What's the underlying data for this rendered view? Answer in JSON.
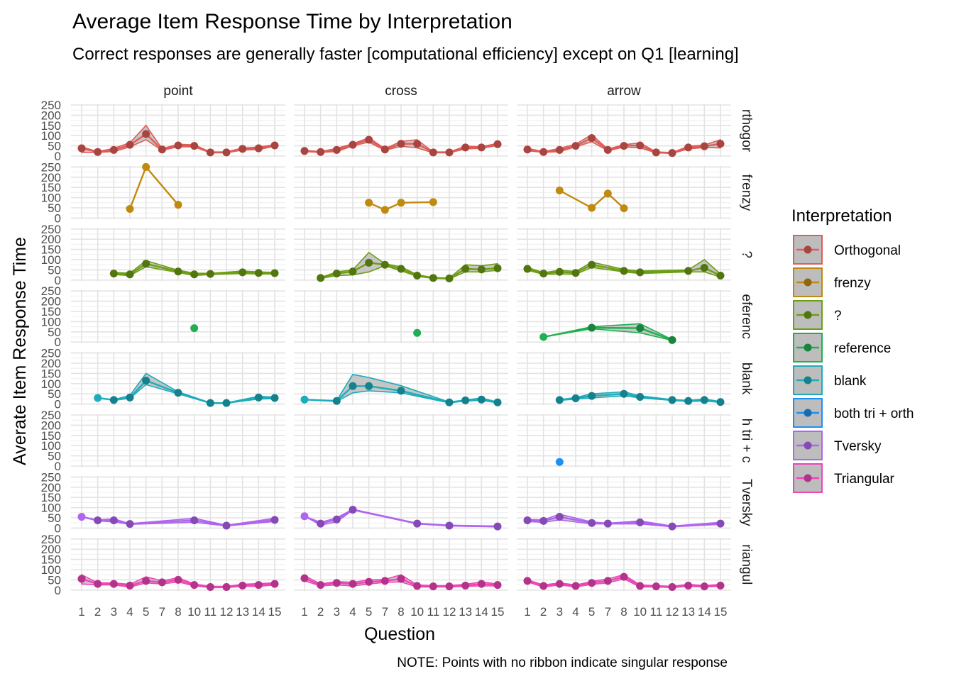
{
  "chart_data": {
    "type": "line",
    "title": "Average Item Response Time by Interpretation",
    "subtitle": "Correct responses are generally faster [computational efficiency] except on Q1 [learning]",
    "caption": "NOTE: Points with no ribbon indicate singular response",
    "xlabel": "Question",
    "ylabel": "Averate Item Response Time",
    "ylim": [
      0,
      250
    ],
    "yticks": [
      0,
      50,
      100,
      150,
      200,
      250
    ],
    "x_categories": [
      "1",
      "2",
      "3",
      "4",
      "5",
      "7",
      "8",
      "10",
      "11",
      "12",
      "13",
      "14",
      "15"
    ],
    "columns": [
      "point",
      "cross",
      "arrow"
    ],
    "rows": [
      {
        "strip": "rthogor",
        "colour": "#E05C57"
      },
      {
        "strip": "frenzy",
        "colour": "#C08A10"
      },
      {
        "strip": "?",
        "colour": "#6E9E14"
      },
      {
        "strip": "eferenc",
        "colour": "#20B050"
      },
      {
        "strip": "blank",
        "colour": "#1DACBB"
      },
      {
        "strip": "h tri + c",
        "colour": "#1E90F0"
      },
      {
        "strip": "Tversky",
        "colour": "#B064F0"
      },
      {
        "strip": "riangul",
        "colour": "#F045B8"
      }
    ],
    "legend": {
      "title": "Interpretation",
      "items": [
        {
          "label": "Orthogonal",
          "colour": "#E05C57"
        },
        {
          "label": "frenzy",
          "colour": "#C08A10"
        },
        {
          "label": "?",
          "colour": "#6E9E14"
        },
        {
          "label": "reference",
          "colour": "#20B050"
        },
        {
          "label": "blank",
          "colour": "#1DACBB"
        },
        {
          "label": "both tri + orth",
          "colour": "#1E90F0"
        },
        {
          "label": "Tversky",
          "colour": "#B064F0"
        },
        {
          "label": "Triangular",
          "colour": "#F045B8"
        }
      ]
    },
    "panels": [
      [
        [
          [
            "1",
            38,
            18,
            45
          ],
          [
            "2",
            20,
            18,
            22
          ],
          [
            "3",
            30,
            22,
            38
          ],
          [
            "4",
            55,
            45,
            65
          ],
          [
            "5",
            108,
            80,
            150
          ],
          [
            "7",
            32,
            28,
            36
          ],
          [
            "8",
            52,
            45,
            58
          ],
          [
            "10",
            50,
            45,
            55
          ],
          [
            "11",
            18,
            16,
            20
          ],
          [
            "12",
            18,
            16,
            20
          ],
          [
            "13",
            35,
            30,
            40
          ],
          [
            "14",
            38,
            32,
            44
          ],
          [
            "15",
            52,
            48,
            56
          ]
        ],
        [
          [
            "1",
            25,
            22,
            28
          ],
          [
            "2",
            20,
            18,
            22
          ],
          [
            "3",
            30,
            22,
            38
          ],
          [
            "4",
            55,
            50,
            60
          ],
          [
            "5",
            80,
            68,
            90
          ],
          [
            "7",
            32,
            28,
            36
          ],
          [
            "8",
            60,
            48,
            72
          ],
          [
            "10",
            60,
            40,
            80
          ],
          [
            "11",
            18,
            16,
            20
          ],
          [
            "12",
            18,
            16,
            20
          ],
          [
            "13",
            42,
            35,
            48
          ],
          [
            "14",
            42,
            38,
            46
          ],
          [
            "15",
            58,
            52,
            62
          ]
        ],
        [
          [
            "1",
            32,
            26,
            38
          ],
          [
            "2",
            20,
            18,
            22
          ],
          [
            "3",
            30,
            22,
            38
          ],
          [
            "4",
            50,
            45,
            58
          ],
          [
            "5",
            88,
            70,
            105
          ],
          [
            "7",
            30,
            26,
            34
          ],
          [
            "8",
            50,
            44,
            56
          ],
          [
            "10",
            52,
            40,
            65
          ],
          [
            "11",
            18,
            16,
            20
          ],
          [
            "12",
            15,
            13,
            17
          ],
          [
            "13",
            42,
            35,
            48
          ],
          [
            "14",
            48,
            42,
            54
          ],
          [
            "15",
            60,
            40,
            80
          ]
        ]
      ],
      [
        [
          [
            "4",
            45,
            45,
            45
          ],
          [
            "5",
            250,
            250,
            250
          ],
          [
            "8",
            65,
            65,
            65
          ]
        ],
        [
          [
            "5",
            75,
            75,
            75
          ],
          [
            "7",
            40,
            40,
            40
          ],
          [
            "8",
            75,
            75,
            75
          ],
          [
            "11",
            78,
            78,
            78
          ]
        ],
        [
          [
            "3",
            135,
            135,
            135
          ],
          [
            "5",
            50,
            50,
            50
          ],
          [
            "7",
            120,
            120,
            120
          ],
          [
            "8",
            48,
            48,
            48
          ]
        ]
      ],
      [
        [
          [
            "3",
            32,
            27,
            37
          ],
          [
            "4",
            28,
            22,
            34
          ],
          [
            "5",
            80,
            65,
            95
          ],
          [
            "8",
            42,
            37,
            48
          ],
          [
            "10",
            28,
            22,
            34
          ],
          [
            "11",
            30,
            27,
            33
          ],
          [
            "13",
            38,
            32,
            44
          ],
          [
            "14",
            35,
            30,
            40
          ],
          [
            "15",
            34,
            30,
            38
          ]
        ],
        [
          [
            "2",
            10,
            8,
            12
          ],
          [
            "3",
            32,
            22,
            40
          ],
          [
            "4",
            42,
            25,
            50
          ],
          [
            "5",
            85,
            40,
            135
          ],
          [
            "7",
            75,
            70,
            80
          ],
          [
            "8",
            55,
            45,
            65
          ],
          [
            "10",
            22,
            18,
            26
          ],
          [
            "11",
            10,
            8,
            12
          ],
          [
            "12",
            8,
            6,
            10
          ],
          [
            "13",
            55,
            40,
            75
          ],
          [
            "14",
            52,
            40,
            70
          ],
          [
            "15",
            58,
            48,
            80
          ]
        ],
        [
          [
            "1",
            55,
            48,
            62
          ],
          [
            "2",
            32,
            28,
            36
          ],
          [
            "3",
            40,
            30,
            48
          ],
          [
            "4",
            35,
            28,
            42
          ],
          [
            "5",
            75,
            62,
            88
          ],
          [
            "8",
            45,
            40,
            52
          ],
          [
            "10",
            38,
            32,
            44
          ],
          [
            "13",
            45,
            40,
            50
          ],
          [
            "14",
            60,
            40,
            100
          ],
          [
            "15",
            22,
            15,
            30
          ]
        ]
      ],
      [
        [
          [
            "10",
            68,
            68,
            68
          ]
        ],
        [
          [
            "10",
            45,
            45,
            45
          ]
        ],
        [
          [
            "2",
            25,
            25,
            25
          ],
          [
            "5",
            70,
            65,
            75
          ],
          [
            "10",
            68,
            45,
            90
          ],
          [
            "12",
            10,
            8,
            12
          ]
        ]
      ],
      [
        [
          [
            "2",
            30,
            30,
            30
          ],
          [
            "3",
            20,
            18,
            22
          ],
          [
            "4",
            32,
            28,
            42
          ],
          [
            "5",
            115,
            95,
            150
          ],
          [
            "8",
            55,
            50,
            60
          ],
          [
            "11",
            5,
            4,
            6
          ],
          [
            "12",
            5,
            4,
            6
          ],
          [
            "14",
            32,
            25,
            38
          ],
          [
            "15",
            30,
            26,
            34
          ]
        ],
        [
          [
            "1",
            22,
            22,
            22
          ],
          [
            "3",
            15,
            13,
            17
          ],
          [
            "4",
            88,
            55,
            145
          ],
          [
            "5",
            88,
            65,
            130
          ],
          [
            "8",
            65,
            55,
            90
          ],
          [
            "12",
            8,
            6,
            10
          ],
          [
            "13",
            18,
            15,
            20
          ],
          [
            "14",
            22,
            18,
            30
          ],
          [
            "15",
            8,
            6,
            10
          ]
        ],
        [
          [
            "3",
            20,
            18,
            22
          ],
          [
            "4",
            28,
            24,
            32
          ],
          [
            "5",
            40,
            30,
            50
          ],
          [
            "8",
            50,
            40,
            60
          ],
          [
            "10",
            35,
            30,
            40
          ],
          [
            "12",
            20,
            18,
            22
          ],
          [
            "13",
            15,
            12,
            18
          ],
          [
            "14",
            20,
            15,
            25
          ],
          [
            "15",
            10,
            8,
            12
          ]
        ]
      ],
      [
        [],
        [],
        [
          [
            "3",
            20,
            20,
            20
          ]
        ]
      ],
      [
        [
          [
            "1",
            55,
            55,
            55
          ],
          [
            "2",
            38,
            35,
            40
          ],
          [
            "3",
            38,
            30,
            45
          ],
          [
            "4",
            20,
            18,
            22
          ],
          [
            "10",
            38,
            28,
            48
          ],
          [
            "12",
            12,
            10,
            14
          ],
          [
            "15",
            40,
            32,
            48
          ]
        ],
        [
          [
            "1",
            58,
            58,
            58
          ],
          [
            "2",
            22,
            15,
            28
          ],
          [
            "3",
            42,
            30,
            50
          ],
          [
            "4",
            90,
            88,
            92
          ],
          [
            "10",
            22,
            20,
            24
          ],
          [
            "12",
            12,
            10,
            14
          ],
          [
            "15",
            8,
            6,
            10
          ]
        ],
        [
          [
            "1",
            38,
            32,
            42
          ],
          [
            "2",
            35,
            28,
            40
          ],
          [
            "3",
            55,
            40,
            68
          ],
          [
            "5",
            25,
            20,
            30
          ],
          [
            "7",
            22,
            20,
            24
          ],
          [
            "10",
            28,
            20,
            35
          ],
          [
            "12",
            8,
            6,
            10
          ],
          [
            "15",
            22,
            18,
            28
          ]
        ]
      ],
      [
        [
          [
            "1",
            55,
            30,
            75
          ],
          [
            "2",
            30,
            25,
            35
          ],
          [
            "3",
            30,
            25,
            35
          ],
          [
            "4",
            22,
            15,
            28
          ],
          [
            "5",
            45,
            35,
            65
          ],
          [
            "7",
            38,
            30,
            45
          ],
          [
            "8",
            50,
            40,
            60
          ],
          [
            "10",
            25,
            20,
            30
          ],
          [
            "11",
            15,
            12,
            18
          ],
          [
            "12",
            15,
            12,
            18
          ],
          [
            "13",
            22,
            18,
            28
          ],
          [
            "14",
            25,
            18,
            32
          ],
          [
            "15",
            30,
            25,
            35
          ]
        ],
        [
          [
            "1",
            58,
            45,
            70
          ],
          [
            "2",
            25,
            20,
            30
          ],
          [
            "3",
            35,
            25,
            42
          ],
          [
            "4",
            30,
            20,
            38
          ],
          [
            "5",
            40,
            30,
            50
          ],
          [
            "7",
            45,
            38,
            52
          ],
          [
            "8",
            55,
            40,
            75
          ],
          [
            "10",
            20,
            15,
            25
          ],
          [
            "11",
            18,
            15,
            22
          ],
          [
            "12",
            18,
            15,
            22
          ],
          [
            "13",
            22,
            18,
            28
          ],
          [
            "14",
            30,
            20,
            40
          ],
          [
            "15",
            25,
            20,
            30
          ]
        ],
        [
          [
            "1",
            45,
            40,
            50
          ],
          [
            "2",
            20,
            15,
            25
          ],
          [
            "3",
            30,
            25,
            35
          ],
          [
            "4",
            20,
            15,
            25
          ],
          [
            "5",
            35,
            28,
            42
          ],
          [
            "7",
            45,
            35,
            55
          ],
          [
            "8",
            65,
            55,
            75
          ],
          [
            "10",
            20,
            15,
            25
          ],
          [
            "11",
            18,
            15,
            22
          ],
          [
            "12",
            15,
            12,
            18
          ],
          [
            "13",
            22,
            18,
            28
          ],
          [
            "14",
            18,
            15,
            22
          ],
          [
            "15",
            22,
            18,
            28
          ]
        ]
      ]
    ]
  }
}
